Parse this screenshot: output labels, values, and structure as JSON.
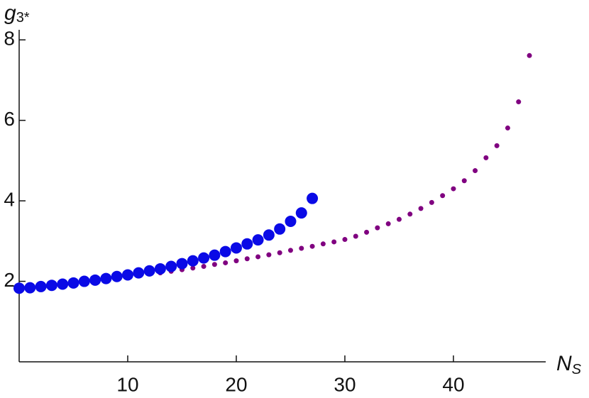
{
  "chart_data": {
    "type": "scatter",
    "xlabel": "N",
    "xlabel_sub": "S",
    "ylabel": "g",
    "ylabel_sub": "3*",
    "xlim": [
      0,
      48.5
    ],
    "ylim": [
      0,
      8.25
    ],
    "xticks": [
      10,
      20,
      30,
      40
    ],
    "yticks": [
      2,
      4,
      6,
      8
    ],
    "series": [
      {
        "color": "#800080",
        "size": 3.5,
        "x": [
          0,
          1,
          2,
          3,
          4,
          5,
          6,
          7,
          8,
          9,
          10,
          11,
          12,
          13,
          14,
          15,
          16,
          17,
          18,
          19,
          20,
          21,
          22,
          23,
          24,
          25,
          26,
          27,
          28,
          29,
          30,
          31,
          32,
          33,
          34,
          35,
          36,
          37,
          38,
          39,
          40,
          41,
          42,
          43,
          44,
          45,
          46,
          47
        ],
        "values": [
          1.83,
          1.85,
          1.88,
          1.91,
          1.94,
          1.96,
          1.99,
          2.02,
          2.05,
          2.08,
          2.11,
          2.14,
          2.18,
          2.21,
          2.25,
          2.29,
          2.33,
          2.37,
          2.42,
          2.46,
          2.51,
          2.56,
          2.61,
          2.66,
          2.71,
          2.77,
          2.82,
          2.87,
          2.93,
          2.98,
          3.04,
          3.12,
          3.22,
          3.33,
          3.43,
          3.54,
          3.67,
          3.81,
          3.96,
          4.13,
          4.3,
          4.5,
          4.75,
          5.07,
          5.37,
          5.81,
          6.46,
          7.61
        ]
      },
      {
        "color": "#0a0ae6",
        "size": 8,
        "x": [
          0,
          1,
          2,
          3,
          4,
          5,
          6,
          7,
          8,
          9,
          10,
          11,
          12,
          13,
          14,
          15,
          16,
          17,
          18,
          19,
          20,
          21,
          22,
          23,
          24,
          25,
          26,
          27
        ],
        "values": [
          1.83,
          1.84,
          1.87,
          1.9,
          1.93,
          1.96,
          2.0,
          2.03,
          2.07,
          2.12,
          2.16,
          2.21,
          2.26,
          2.31,
          2.37,
          2.44,
          2.51,
          2.58,
          2.65,
          2.74,
          2.83,
          2.93,
          3.03,
          3.15,
          3.3,
          3.49,
          3.7,
          4.06
        ]
      }
    ]
  }
}
